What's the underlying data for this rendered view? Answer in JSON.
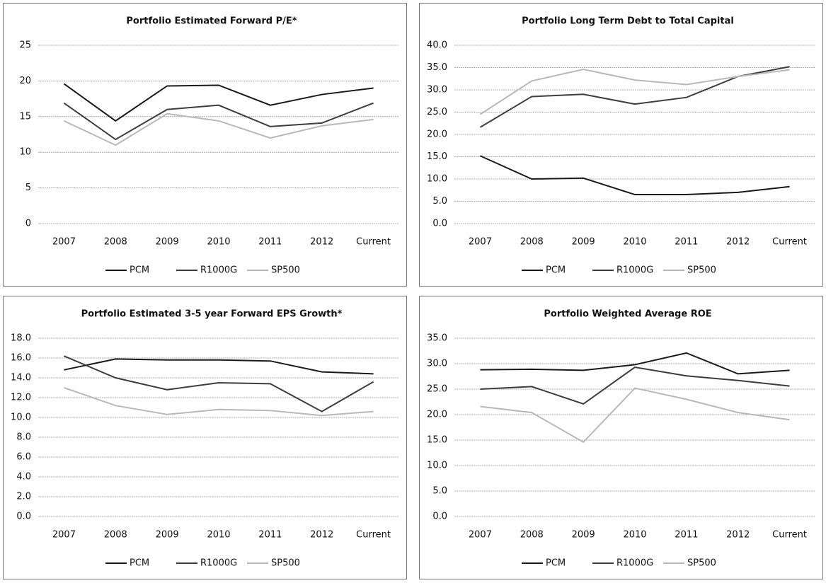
{
  "chart_data": [
    {
      "type": "line",
      "title": "Portfolio Estimated Forward P/E*",
      "categories": [
        "2007",
        "2008",
        "2009",
        "2010",
        "2011",
        "2012",
        "Current"
      ],
      "series": [
        {
          "name": "PCM",
          "color": "#1a1a1a",
          "values": [
            19.6,
            14.4,
            19.3,
            19.4,
            16.6,
            18.1,
            19.0
          ]
        },
        {
          "name": "R1000G",
          "color": "#3d3d3d",
          "values": [
            16.9,
            11.8,
            16.0,
            16.6,
            13.6,
            14.1,
            16.9
          ]
        },
        {
          "name": "SP500",
          "color": "#b8b8b8",
          "values": [
            14.4,
            11.0,
            15.4,
            14.4,
            12.0,
            13.7,
            14.6
          ]
        }
      ],
      "ylim": [
        0,
        25
      ],
      "yticks": [
        0,
        5,
        10,
        15,
        20,
        25
      ],
      "grid": true,
      "legend": "bottom"
    },
    {
      "type": "line",
      "title": "Portfolio Long Term Debt to Total Capital",
      "categories": [
        "2007",
        "2008",
        "2009",
        "2010",
        "2011",
        "2012",
        "Current"
      ],
      "series": [
        {
          "name": "PCM",
          "color": "#1a1a1a",
          "values": [
            15.2,
            10.0,
            10.2,
            6.5,
            6.5,
            7.0,
            8.3
          ]
        },
        {
          "name": "R1000G",
          "color": "#3d3d3d",
          "values": [
            21.6,
            28.5,
            29.0,
            26.8,
            28.3,
            33.0,
            35.2
          ]
        },
        {
          "name": "SP500",
          "color": "#b8b8b8",
          "values": [
            24.5,
            32.0,
            34.6,
            32.2,
            31.2,
            33.0,
            34.5
          ]
        }
      ],
      "ylim": [
        0,
        40
      ],
      "yticks": [
        {
          "value": 0,
          "label": "0.0"
        },
        {
          "value": 5,
          "label": "5.0"
        },
        {
          "value": 10,
          "label": "10.0"
        },
        {
          "value": 15,
          "label": "15.0"
        },
        {
          "value": 20,
          "label": "20.0"
        },
        {
          "value": 25,
          "label": "25.0"
        },
        {
          "value": 30,
          "label": "30.0"
        },
        {
          "value": 35,
          "label": "35.0"
        },
        {
          "value": 40,
          "label": "40.0"
        }
      ],
      "grid": true,
      "legend": "bottom"
    },
    {
      "type": "line",
      "title": "Portfolio Estimated 3-5 year Forward EPS Growth*",
      "categories": [
        "2007",
        "2008",
        "2009",
        "2010",
        "2011",
        "2012",
        "Current"
      ],
      "series": [
        {
          "name": "PCM",
          "color": "#1a1a1a",
          "values": [
            14.8,
            15.9,
            15.8,
            15.8,
            15.7,
            14.6,
            14.4
          ]
        },
        {
          "name": "R1000G",
          "color": "#3d3d3d",
          "values": [
            16.2,
            14.0,
            12.8,
            13.5,
            13.4,
            10.6,
            13.6
          ]
        },
        {
          "name": "SP500",
          "color": "#b8b8b8",
          "values": [
            13.0,
            11.2,
            10.3,
            10.8,
            10.7,
            10.2,
            10.6
          ]
        }
      ],
      "ylim": [
        0,
        18
      ],
      "yticks": [
        {
          "value": 0,
          "label": "0.0"
        },
        {
          "value": 2,
          "label": "2.0"
        },
        {
          "value": 4,
          "label": "4.0"
        },
        {
          "value": 6,
          "label": "6.0"
        },
        {
          "value": 8,
          "label": "8.0"
        },
        {
          "value": 10,
          "label": "10.0"
        },
        {
          "value": 12,
          "label": "12.0"
        },
        {
          "value": 14,
          "label": "14.0"
        },
        {
          "value": 16,
          "label": "16.0"
        },
        {
          "value": 18,
          "label": "18.0"
        }
      ],
      "grid": true,
      "legend": "bottom"
    },
    {
      "type": "line",
      "title": "Portfolio Weighted Average ROE",
      "categories": [
        "2007",
        "2008",
        "2009",
        "2010",
        "2011",
        "2012",
        "Current"
      ],
      "series": [
        {
          "name": "PCM",
          "color": "#1a1a1a",
          "values": [
            28.8,
            28.9,
            28.7,
            29.8,
            32.1,
            28.0,
            28.7
          ]
        },
        {
          "name": "R1000G",
          "color": "#3d3d3d",
          "values": [
            25.0,
            25.5,
            22.1,
            29.3,
            27.6,
            26.7,
            25.6
          ]
        },
        {
          "name": "SP500",
          "color": "#b8b8b8",
          "values": [
            21.6,
            20.4,
            14.6,
            25.2,
            23.0,
            20.4,
            19.0
          ]
        }
      ],
      "ylim": [
        0,
        35
      ],
      "yticks": [
        {
          "value": 0,
          "label": "0.0"
        },
        {
          "value": 5,
          "label": "5.0"
        },
        {
          "value": 10,
          "label": "10.0"
        },
        {
          "value": 15,
          "label": "15.0"
        },
        {
          "value": 20,
          "label": "20.0"
        },
        {
          "value": 25,
          "label": "25.0"
        },
        {
          "value": 30,
          "label": "30.0"
        },
        {
          "value": 35,
          "label": "35.0"
        }
      ],
      "grid": true,
      "legend": "bottom"
    }
  ]
}
